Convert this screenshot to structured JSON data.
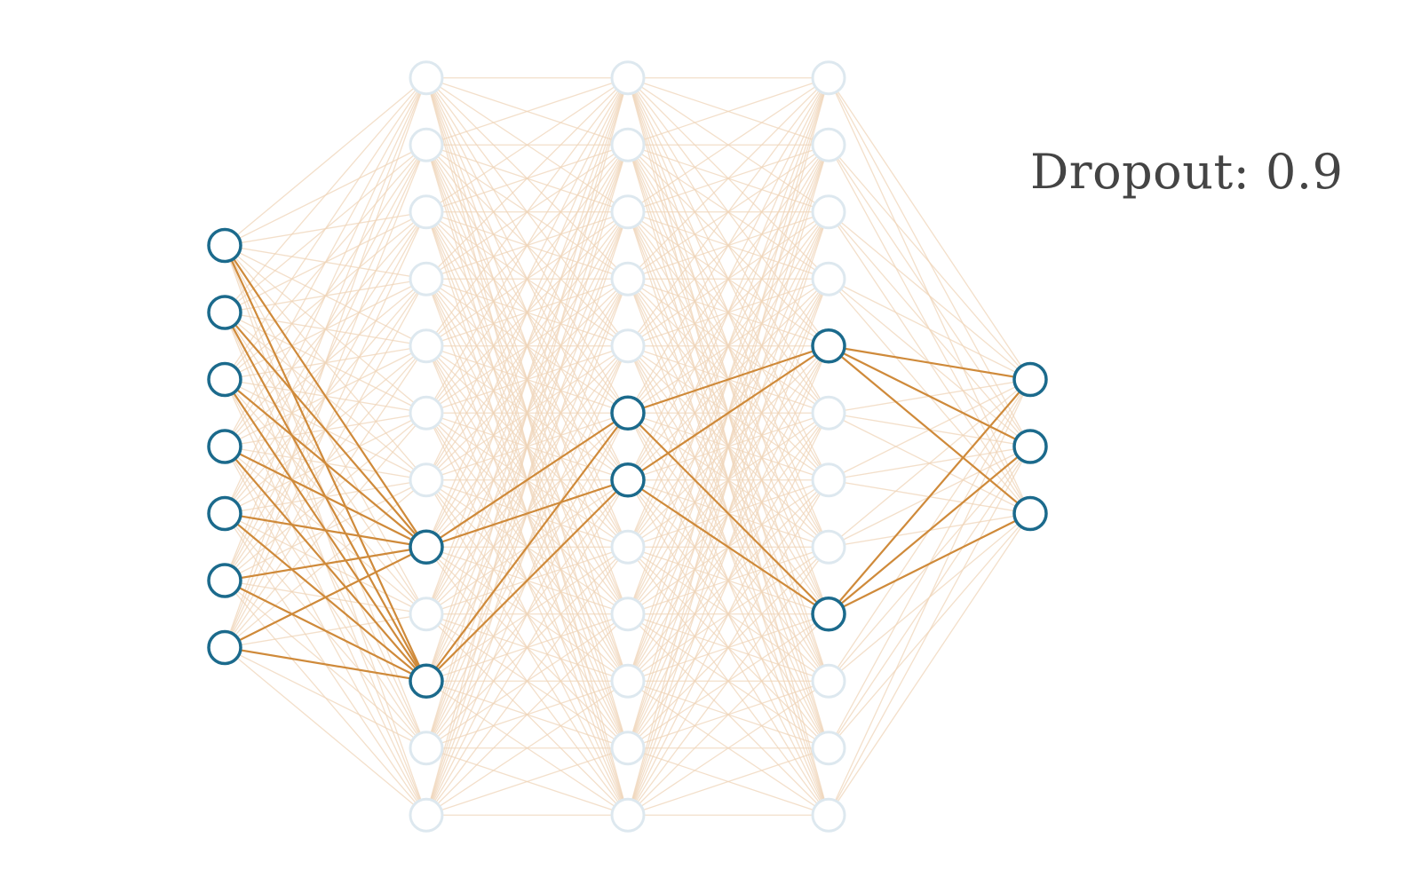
{
  "dropout_label": "Dropout:",
  "dropout_value": "0.9",
  "colors": {
    "active_node_stroke": "#1b6a8c",
    "inactive_node_stroke": "#dde8ef",
    "node_fill": "#ffffff",
    "active_edge": "#cf8a3a",
    "inactive_edge": "#efd4b8",
    "label_text": "#444444"
  },
  "network": {
    "layers": [
      {
        "name": "input",
        "count": 7,
        "active": [
          0,
          1,
          2,
          3,
          4,
          5,
          6
        ]
      },
      {
        "name": "hidden-1",
        "count": 12,
        "active": [
          7,
          9
        ]
      },
      {
        "name": "hidden-2",
        "count": 12,
        "active": [
          5,
          6
        ]
      },
      {
        "name": "hidden-3",
        "count": 12,
        "active": [
          4,
          8
        ]
      },
      {
        "name": "output",
        "count": 3,
        "active": [
          0,
          1,
          2
        ]
      }
    ]
  }
}
